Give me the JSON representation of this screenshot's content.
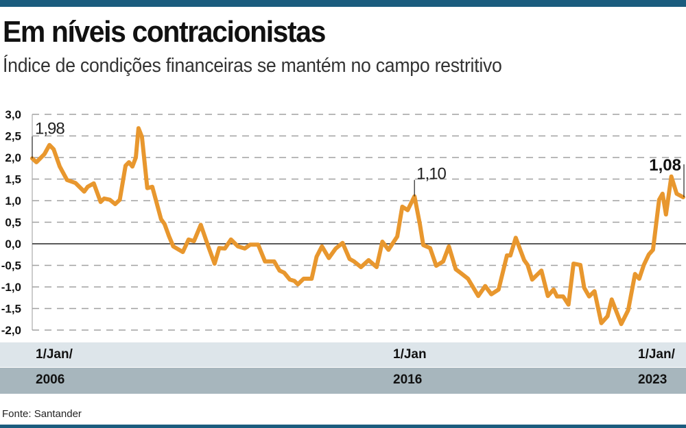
{
  "header": {
    "title": "Em níveis contracionistas",
    "subtitle": "Índice de condições financeiras se mantém no campo restritivo"
  },
  "footer": {
    "source": "Fonte: Santander"
  },
  "colors": {
    "line": "#e8972e",
    "top_bar": "#1b5c7e",
    "band_light": "#dde5ea",
    "band_dark": "#a7b6bd",
    "grid": "#a0a0a0"
  },
  "chart_data": {
    "type": "line",
    "title": "Em níveis contracionistas",
    "subtitle": "Índice de condições financeiras se mantém no campo restritivo",
    "xlabel": "",
    "ylabel": "",
    "ylim": [
      -2.0,
      3.0
    ],
    "xlim": [
      2006.0,
      2023.05
    ],
    "yticks": [
      "3,0",
      "2,5",
      "2,0",
      "1,5",
      "1,0",
      "0,5",
      "0,0",
      "-0,5",
      "-1,0",
      "-1,5",
      "-2,0"
    ],
    "ytick_values": [
      3,
      2.5,
      2,
      1.5,
      1,
      0.5,
      0,
      -0.5,
      -1,
      -1.5,
      -2
    ],
    "xticks": [
      {
        "line1": "1/Jan/",
        "line2": "2006",
        "x": 2006.0
      },
      {
        "line1": "1/Jan",
        "line2": "2016",
        "x": 2016.0
      },
      {
        "line1": "1/Jan/",
        "line2": "2023",
        "x": 2023.0
      }
    ],
    "grid": true,
    "annotations": [
      {
        "text": "1,98",
        "x": 2006.0,
        "y": 1.98,
        "bold": false
      },
      {
        "text": "1,10",
        "x": 2016.0,
        "y": 1.1,
        "bold": false
      },
      {
        "text": "1,08",
        "x": 2023.03,
        "y": 1.08,
        "bold": true
      }
    ],
    "series": [
      {
        "name": "Índice de condições financeiras",
        "x": [
          2006.0,
          2006.11,
          2006.32,
          2006.45,
          2006.56,
          2006.72,
          2006.91,
          2007.13,
          2007.36,
          2007.45,
          2007.61,
          2007.79,
          2007.88,
          2008.03,
          2008.17,
          2008.29,
          2008.44,
          2008.53,
          2008.62,
          2008.71,
          2008.78,
          2008.87,
          2009.01,
          2009.14,
          2009.37,
          2009.46,
          2009.58,
          2009.69,
          2009.94,
          2010.09,
          2010.23,
          2010.41,
          2010.59,
          2010.77,
          2010.89,
          2011.04,
          2011.2,
          2011.38,
          2011.56,
          2011.7,
          2011.91,
          2012.09,
          2012.33,
          2012.47,
          2012.59,
          2012.74,
          2012.86,
          2012.95,
          2013.1,
          2013.31,
          2013.44,
          2013.58,
          2013.76,
          2013.94,
          2014.12,
          2014.3,
          2014.42,
          2014.6,
          2014.8,
          2015.01,
          2015.16,
          2015.32,
          2015.46,
          2015.55,
          2015.68,
          2015.82,
          2016.0,
          2016.14,
          2016.23,
          2016.41,
          2016.57,
          2016.75,
          2016.9,
          2017.08,
          2017.2,
          2017.4,
          2017.67,
          2017.85,
          2018.01,
          2018.2,
          2018.42,
          2018.51,
          2018.65,
          2018.87,
          2018.96,
          2019.08,
          2019.32,
          2019.49,
          2019.64,
          2019.73,
          2019.89,
          2020.03,
          2020.16,
          2020.34,
          2020.44,
          2020.57,
          2020.71,
          2020.89,
          2021.05,
          2021.16,
          2021.41,
          2021.59,
          2021.77,
          2021.88,
          2022.0,
          2022.13,
          2022.24,
          2022.4,
          2022.49,
          2022.58,
          2022.72,
          2022.86,
          2023.03
        ],
        "y": [
          1.98,
          1.89,
          2.08,
          2.29,
          2.19,
          1.79,
          1.48,
          1.41,
          1.21,
          1.32,
          1.4,
          0.97,
          1.05,
          1.02,
          0.92,
          1.02,
          1.81,
          1.89,
          1.79,
          2.0,
          2.68,
          2.48,
          1.29,
          1.32,
          0.57,
          0.46,
          0.17,
          -0.06,
          -0.19,
          0.1,
          0.06,
          0.44,
          -0.02,
          -0.46,
          -0.1,
          -0.11,
          0.1,
          -0.06,
          -0.11,
          -0.02,
          -0.02,
          -0.41,
          -0.41,
          -0.62,
          -0.67,
          -0.83,
          -0.86,
          -0.94,
          -0.81,
          -0.81,
          -0.3,
          -0.06,
          -0.33,
          -0.11,
          0.02,
          -0.35,
          -0.41,
          -0.54,
          -0.38,
          -0.54,
          0.05,
          -0.14,
          0.05,
          0.17,
          0.86,
          0.78,
          1.1,
          0.46,
          -0.03,
          -0.1,
          -0.51,
          -0.41,
          -0.06,
          -0.59,
          -0.67,
          -0.81,
          -1.21,
          -0.98,
          -1.17,
          -1.06,
          -0.27,
          -0.27,
          0.14,
          -0.38,
          -0.49,
          -0.83,
          -0.62,
          -1.21,
          -1.06,
          -1.22,
          -1.22,
          -1.41,
          -0.46,
          -0.49,
          -1.02,
          -1.22,
          -1.1,
          -1.84,
          -1.68,
          -1.29,
          -1.86,
          -1.54,
          -0.7,
          -0.81,
          -0.49,
          -0.25,
          -0.14,
          1.02,
          1.16,
          0.68,
          1.56,
          1.16,
          1.08
        ]
      }
    ]
  }
}
